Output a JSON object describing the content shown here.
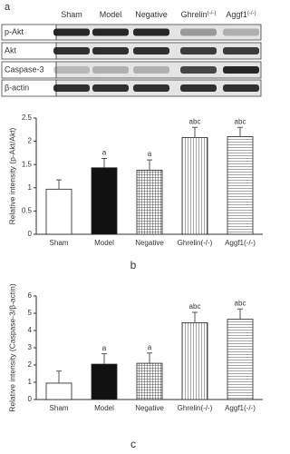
{
  "panel_a": {
    "label": "a",
    "columns": [
      "Sham",
      "Model",
      "Negative",
      "Ghrelin",
      "Aggf1"
    ],
    "column_superscripts": [
      null,
      null,
      null,
      "(-/-)",
      "(-/-)"
    ],
    "rows": [
      "p-Akt",
      "Akt",
      "Caspase-3",
      "β-actin"
    ]
  },
  "chart_data": [
    {
      "type": "bar",
      "panel": "b",
      "y_label": "Relative intensity (p-Akt/Akt)",
      "categories": [
        "Sham",
        "Model",
        "Negative",
        "Ghrelin(-/-)",
        "Aggf1(-/-)"
      ],
      "values": [
        0.97,
        1.43,
        1.38,
        2.08,
        2.1
      ],
      "errors": [
        0.2,
        0.2,
        0.22,
        0.22,
        0.2
      ],
      "annotations": [
        null,
        "a",
        "a",
        "abc",
        "abc"
      ],
      "bar_patterns": [
        "white",
        "black",
        "grid",
        "vertical",
        "horizontal"
      ],
      "ylim": [
        0,
        2.5
      ],
      "yticks": [
        0,
        0.5,
        1,
        1.5,
        2,
        2.5
      ]
    },
    {
      "type": "bar",
      "panel": "c",
      "y_label": "Relative intensity (Caspase-3/β-actin)",
      "categories": [
        "Sham",
        "Model",
        "Negative",
        "Ghrelin(-/-)",
        "Aggf1(-/-)"
      ],
      "values": [
        0.95,
        2.05,
        2.1,
        4.45,
        4.65
      ],
      "errors": [
        0.7,
        0.6,
        0.6,
        0.6,
        0.6
      ],
      "annotations": [
        null,
        "a",
        "a",
        "abc",
        "abc"
      ],
      "bar_patterns": [
        "white",
        "black",
        "grid",
        "vertical",
        "horizontal"
      ],
      "ylim": [
        0,
        6
      ],
      "yticks": [
        0,
        1,
        2,
        3,
        4,
        5,
        6
      ]
    }
  ]
}
